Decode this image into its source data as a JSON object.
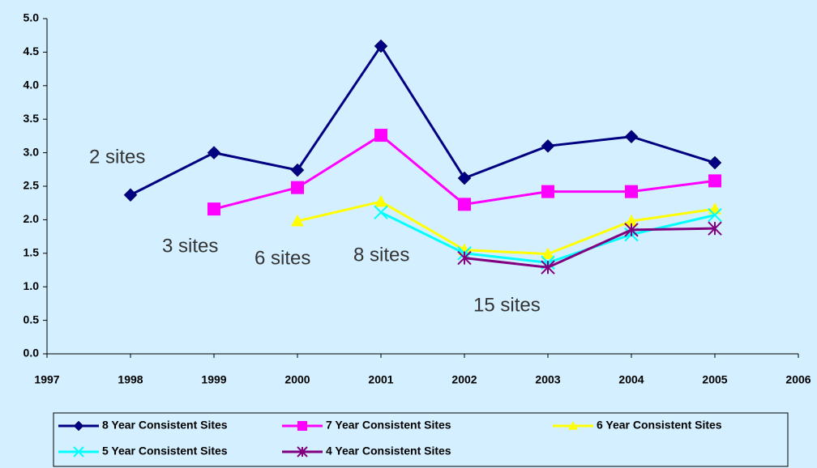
{
  "chart_data": {
    "type": "line",
    "x": [
      1998,
      1999,
      2000,
      2001,
      2002,
      2003,
      2004,
      2005
    ],
    "series": [
      {
        "name": "8 Year Consistent Sites",
        "color": "#000080",
        "marker": "diamond",
        "values": [
          2.37,
          3.0,
          2.74,
          4.59,
          2.62,
          3.1,
          3.24,
          2.85
        ]
      },
      {
        "name": "7 Year Consistent Sites",
        "color": "#ff00ff",
        "marker": "square",
        "values": [
          null,
          2.16,
          2.48,
          3.26,
          2.23,
          2.42,
          2.42,
          2.58
        ]
      },
      {
        "name": "6 Year Consistent Sites",
        "color": "#ffff00",
        "marker": "triangle",
        "values": [
          null,
          null,
          1.98,
          2.27,
          1.55,
          1.49,
          1.98,
          2.16
        ]
      },
      {
        "name": "5 Year Consistent Sites",
        "color": "#00ffff",
        "marker": "x",
        "values": [
          null,
          null,
          null,
          2.11,
          1.5,
          1.36,
          1.78,
          2.07
        ]
      },
      {
        "name": "4 Year Consistent Sites",
        "color": "#800080",
        "marker": "star",
        "values": [
          null,
          null,
          null,
          null,
          1.43,
          1.29,
          1.85,
          1.87
        ]
      }
    ],
    "annotations": [
      "2 sites",
      "3 sites",
      "6 sites",
      "8 sites",
      "15 sites"
    ],
    "xlim": [
      1997,
      2006
    ],
    "xticks": [
      1997,
      1998,
      1999,
      2000,
      2001,
      2002,
      2003,
      2004,
      2005,
      2006
    ],
    "ylim": [
      0,
      5
    ],
    "yticks": [
      {
        "value": 0,
        "label": "0.0"
      },
      0.5,
      {
        "value": 1,
        "label": "1.0"
      },
      1.5,
      {
        "value": 2,
        "label": "2.0"
      },
      2.5,
      {
        "value": 3,
        "label": "3.0"
      },
      3.5,
      {
        "value": 4,
        "label": "4.0"
      },
      4.5,
      {
        "value": 5,
        "label": "5.0"
      }
    ],
    "legend": "bottom"
  }
}
